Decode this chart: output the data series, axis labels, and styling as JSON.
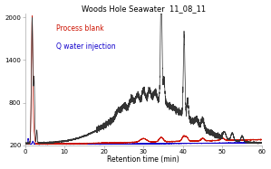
{
  "title": "Woods Hole Seawater  11_08_11",
  "xlabel": "Retention time (min)",
  "xlim": [
    0,
    60
  ],
  "ylim": [
    200,
    2050
  ],
  "yticks": [
    200,
    800,
    1400,
    2000
  ],
  "xticks": [
    0,
    10,
    20,
    30,
    40,
    50,
    60
  ],
  "legend_labels": [
    "Process blank",
    "Q water injection"
  ],
  "legend_colors": [
    "#cc1100",
    "#1100cc"
  ],
  "background_color": "#ffffff",
  "line_color_black": "#333333",
  "line_color_red": "#cc1100",
  "line_color_blue": "#1100cc"
}
